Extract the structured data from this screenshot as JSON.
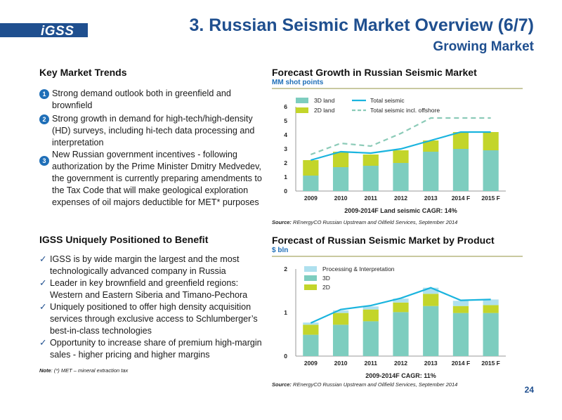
{
  "logo": "iGSS",
  "title": "3. Russian Seismic Market Overview (6/7)",
  "subtitle": "Growing Market",
  "left": {
    "trends_heading": "Key Market Trends",
    "trends": [
      {
        "num": "1",
        "text": "Strong demand outlook both in greenfield and brownfield"
      },
      {
        "num": "2",
        "text": "Strong growth in demand for high-tech/high-density (HD) surveys, including hi-tech data processing and interpretation"
      },
      {
        "num": "3",
        "text": "New Russian government incentives - following authorization by the Prime Minister Dmitry Medvedev, the government is currently preparing amendments to the Tax Code that will make geological exploration expenses of oil majors deductible for MET* purposes"
      }
    ],
    "benefit_heading": "IGSS Uniquely Positioned to Benefit",
    "benefits": [
      "IGSS is by wide margin the largest and the most technologically advanced company in Russia",
      "Leader in key brownfield and greenfield regions: Western and Eastern Siberia and Timano-Pechora",
      "Uniquely positioned to offer high density acquisition services through exclusive access to Schlumberger’s best-in-class technologies",
      "Opportunity to increase share of premium high-margin sales - higher pricing and higher margins"
    ],
    "note_label": "Note",
    "note_text": ": (*) MET – mineral extraction tax"
  },
  "page_number": "24",
  "colors": {
    "brand_blue": "#1f4f8f",
    "land3d": "#7dcdbf",
    "land2d": "#c3d52a",
    "total": "#1ab4de",
    "offshore": "#8ccbb8",
    "proc": "#aee0ee"
  },
  "chart_data": [
    {
      "type": "bar",
      "title": "Forecast Growth in Russian Seismic Market",
      "unit": "MM shot points",
      "categories": [
        "2009",
        "2010",
        "2011",
        "2012",
        "2013",
        "2014 F",
        "2015 F"
      ],
      "ylim": [
        0,
        6
      ],
      "yticks": [
        "0",
        "1",
        "2",
        "3",
        "4",
        "5",
        "6"
      ],
      "stacked": true,
      "series": [
        {
          "name": "3D land",
          "values": [
            1.1,
            1.7,
            1.8,
            2.0,
            2.8,
            3.0,
            2.9
          ]
        },
        {
          "name": "2D land",
          "values": [
            1.1,
            1.1,
            0.8,
            0.9,
            0.8,
            1.2,
            1.3
          ]
        }
      ],
      "lines": [
        {
          "name": "Total seismic",
          "style": "solid",
          "values": [
            2.2,
            2.8,
            2.7,
            3.0,
            3.6,
            4.2,
            4.2
          ]
        },
        {
          "name": "Total seismic incl. offshore",
          "style": "dashed",
          "values": [
            2.6,
            3.4,
            3.2,
            4.1,
            5.2,
            5.2,
            5.2
          ]
        }
      ],
      "xlabel": "2009-2014F Land seismic CAGR: 14%",
      "source_label": "Source:",
      "source_text": " REnergyCO Russian Upstream and Oilfield Services, September 2014",
      "grid": false,
      "legend": "top-left"
    },
    {
      "type": "bar",
      "title": "Forecast of Russian Seismic Market by Product",
      "unit": "$ bln",
      "categories": [
        "2009",
        "2010",
        "2011",
        "2012",
        "2013",
        "2014 F",
        "2015 F"
      ],
      "ylim": [
        0,
        2
      ],
      "yticks": [
        "0",
        "1",
        "2"
      ],
      "stacked": true,
      "series": [
        {
          "name": "3D",
          "values": [
            0.49,
            0.72,
            0.8,
            1.01,
            1.15,
            0.99,
            0.99
          ]
        },
        {
          "name": "2D",
          "values": [
            0.23,
            0.27,
            0.27,
            0.22,
            0.28,
            0.16,
            0.18
          ]
        },
        {
          "name": "Processing & Interpretation",
          "values": [
            0.05,
            0.06,
            0.07,
            0.09,
            0.14,
            0.12,
            0.13
          ]
        }
      ],
      "lines": [
        {
          "name": "Total",
          "style": "solid",
          "values": [
            0.76,
            1.07,
            1.16,
            1.33,
            1.57,
            1.28,
            1.3
          ]
        }
      ],
      "xlabel": "2009-2014F CAGR: 11%",
      "source_label": "Source:",
      "source_text": " REnergyCO Russian Upstream and Oilfield Services, September 2014",
      "grid": false,
      "legend": "top-left"
    }
  ]
}
